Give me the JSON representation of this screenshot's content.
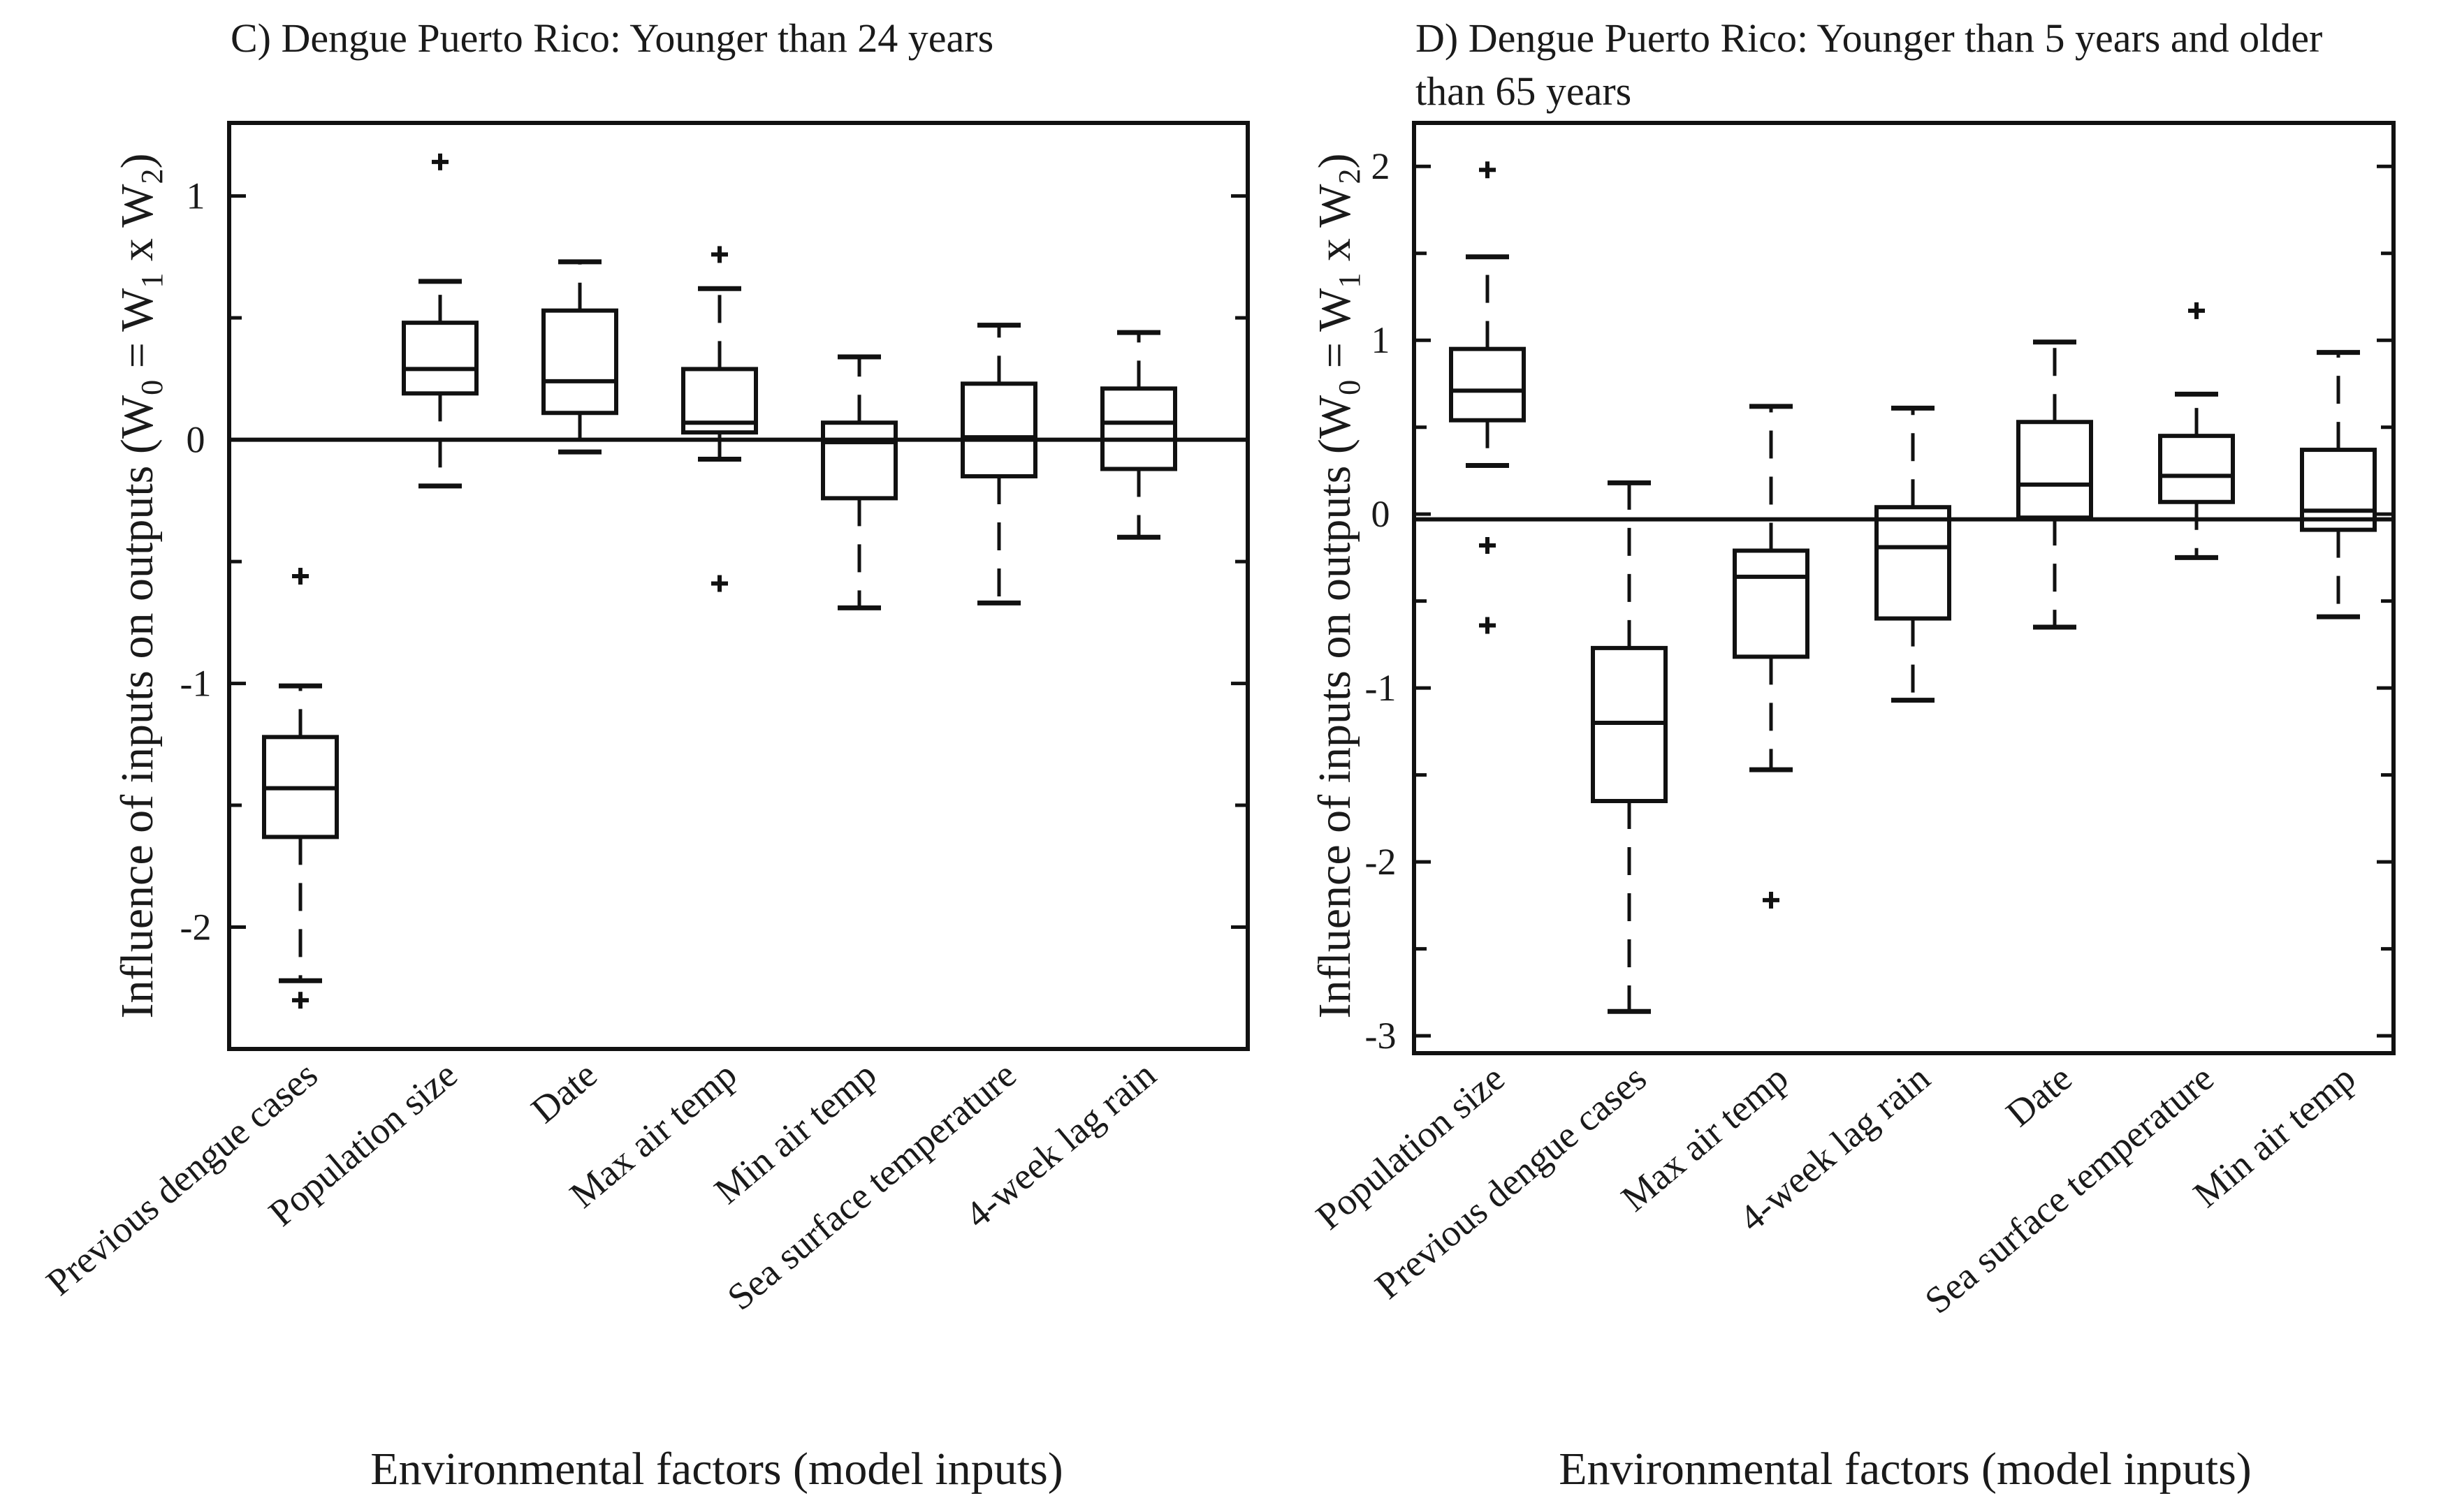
{
  "chart_data": [
    {
      "type": "box",
      "title_lines": [
        "C) Dengue Puerto Rico: Younger than 24 years"
      ],
      "ylabel": "Influence of inputs on outputs (W",
      "ylabel_parts": [
        "Influence of inputs on outputs (W",
        "0",
        " = W",
        "1",
        " x W",
        "2",
        ")"
      ],
      "xlabel": "Environmental factors (model inputs)",
      "ylim": [
        -2.5,
        1.3
      ],
      "yticks": [
        1,
        0,
        -1,
        -2
      ],
      "ytick_labels": [
        "1",
        "0",
        "-1",
        "-2"
      ],
      "reference_line": 0,
      "categories": [
        "Previous dengue cases",
        "Population size",
        "Date",
        "Max air temp",
        "Min air temp",
        "Sea surface temperature",
        "4-week lag rain"
      ],
      "boxes": [
        {
          "whisker_low": -2.22,
          "q1": -1.63,
          "median": -1.43,
          "q3": -1.22,
          "whisker_high": -1.01,
          "outliers": [
            -0.56,
            -2.3
          ]
        },
        {
          "whisker_low": -0.19,
          "q1": 0.19,
          "median": 0.29,
          "q3": 0.48,
          "whisker_high": 0.65,
          "outliers": [
            1.14
          ]
        },
        {
          "whisker_low": -0.05,
          "q1": 0.11,
          "median": 0.24,
          "q3": 0.53,
          "whisker_high": 0.73,
          "outliers": []
        },
        {
          "whisker_low": -0.08,
          "q1": 0.03,
          "median": 0.07,
          "q3": 0.29,
          "whisker_high": 0.62,
          "outliers": [
            0.76,
            -0.59
          ]
        },
        {
          "whisker_low": -0.69,
          "q1": -0.24,
          "median": -0.01,
          "q3": 0.07,
          "whisker_high": 0.34,
          "outliers": []
        },
        {
          "whisker_low": -0.67,
          "q1": -0.15,
          "median": 0.01,
          "q3": 0.23,
          "whisker_high": 0.47,
          "outliers": []
        },
        {
          "whisker_low": -0.4,
          "q1": -0.12,
          "median": 0.07,
          "q3": 0.21,
          "whisker_high": 0.44,
          "outliers": []
        }
      ]
    },
    {
      "type": "box",
      "title_lines": [
        "D) Dengue Puerto Rico: Younger than 5 years and older",
        "than 65 years"
      ],
      "ylabel": "Influence of inputs on outputs (W",
      "ylabel_parts": [
        "Influence of inputs on outputs (W",
        "0",
        " = W",
        "1",
        " x W",
        "2",
        ")"
      ],
      "xlabel": "Environmental factors (model inputs)",
      "ylim": [
        -3.1,
        2.25
      ],
      "yticks": [
        2,
        1,
        0,
        -1,
        -2,
        -3
      ],
      "ytick_labels": [
        "2",
        "1",
        "0",
        "-1",
        "-2",
        "-3"
      ],
      "reference_line": -0.03,
      "categories": [
        "Population size",
        "Previous dengue cases",
        "Max air temp",
        "4-week lag rain",
        "Date",
        "Sea surface temperature",
        "Min air temp"
      ],
      "boxes": [
        {
          "whisker_low": 0.28,
          "q1": 0.54,
          "median": 0.71,
          "q3": 0.95,
          "whisker_high": 1.48,
          "outliers": [
            1.98,
            -0.18,
            -0.64
          ]
        },
        {
          "whisker_low": -2.86,
          "q1": -1.65,
          "median": -1.2,
          "q3": -0.77,
          "whisker_high": 0.18,
          "outliers": []
        },
        {
          "whisker_low": -1.47,
          "q1": -0.82,
          "median": -0.36,
          "q3": -0.21,
          "whisker_high": 0.62,
          "outliers": [
            -2.22
          ]
        },
        {
          "whisker_low": -1.07,
          "q1": -0.6,
          "median": -0.19,
          "q3": 0.04,
          "whisker_high": 0.61,
          "outliers": []
        },
        {
          "whisker_low": -0.65,
          "q1": -0.02,
          "median": 0.17,
          "q3": 0.53,
          "whisker_high": 0.99,
          "outliers": []
        },
        {
          "whisker_low": -0.25,
          "q1": 0.07,
          "median": 0.22,
          "q3": 0.45,
          "whisker_high": 0.69,
          "outliers": [
            1.17
          ]
        },
        {
          "whisker_low": -0.59,
          "q1": -0.09,
          "median": 0.02,
          "q3": 0.37,
          "whisker_high": 0.93,
          "outliers": []
        }
      ]
    }
  ]
}
